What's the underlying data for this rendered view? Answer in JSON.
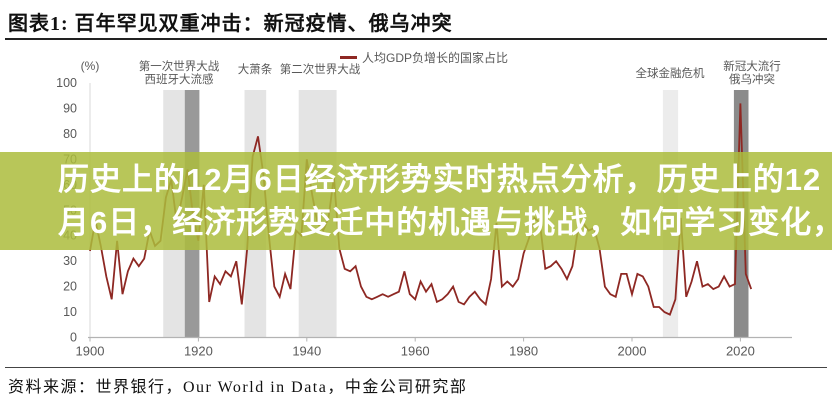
{
  "title": "图表1: 百年罕见双重冲击：新冠疫情、俄乌冲突",
  "source": "资料来源：世界银行，Our World in Data，中金公司研究部",
  "overlay": {
    "background": "#acbc3c",
    "opacity": 0.85,
    "text_color": "#ffffff",
    "line1": "历史上的12月6日经济形势实时热点分析，历史上的12",
    "line2": "月6日，经济形势变迁中的机遇与挑战，如何学习变化，"
  },
  "legend": {
    "marker_color": "#8e2823",
    "label": "人均GDP负增长的国家占比"
  },
  "chart_data": {
    "type": "line",
    "title": "图表1: 百年罕见双重冲击：新冠疫情、俄乌冲突",
    "series_name": "人均GDP负增长的国家占比",
    "unit_label": "(%)",
    "ylabel": "(%)",
    "xlabel": "",
    "ylim": [
      0,
      100
    ],
    "xlim": [
      1900,
      2023
    ],
    "grid": false,
    "legend_position": "top-center",
    "yticks": [
      0,
      10,
      20,
      30,
      40,
      50,
      60,
      70,
      80,
      90,
      100
    ],
    "xticks": [
      1900,
      1920,
      1940,
      1960,
      1980,
      2000,
      2020
    ],
    "x_start": 1900,
    "x_step": 1,
    "values": [
      34,
      46,
      36,
      24,
      15,
      38,
      17,
      26,
      31,
      28,
      31,
      42,
      36,
      38,
      55,
      62,
      45,
      55,
      66,
      48,
      38,
      60,
      14,
      24,
      21,
      26,
      24,
      30,
      13,
      35,
      71,
      79,
      64,
      40,
      20,
      16,
      25,
      19,
      42,
      40,
      70,
      56,
      45,
      42,
      47,
      63,
      35,
      27,
      26,
      28,
      20,
      16,
      15,
      16,
      17,
      16,
      17,
      18,
      26,
      17,
      15,
      22,
      18,
      21,
      14,
      15,
      17,
      20,
      14,
      13,
      16,
      18,
      15,
      13,
      23,
      45,
      20,
      22,
      20,
      23,
      33,
      39,
      47,
      45,
      27,
      28,
      30,
      27,
      23,
      28,
      42,
      45,
      42,
      43,
      35,
      20,
      17,
      16,
      25,
      25,
      17,
      25,
      24,
      20,
      12,
      12,
      10,
      9,
      15,
      47,
      16,
      22,
      30,
      20,
      21,
      19,
      20,
      24,
      20,
      21,
      92,
      25,
      19
    ],
    "line_color": "#8e2823",
    "axis_color": "#b3b3b3",
    "tick_label_color": "#595959",
    "event_bands": [
      {
        "name": "wwi",
        "from": 1913.5,
        "to": 1917.5,
        "color": "#e4e4e4"
      },
      {
        "name": "spanish-flu",
        "from": 1917.5,
        "to": 1920.2,
        "color": "#999999"
      },
      {
        "name": "great-depression",
        "from": 1928.5,
        "to": 1932.5,
        "color": "#e4e4e4"
      },
      {
        "name": "wwii",
        "from": 1938.5,
        "to": 1945.5,
        "color": "#e4e4e4"
      },
      {
        "name": "gfc",
        "from": 2005.7,
        "to": 2008.5,
        "color": "#ececec"
      },
      {
        "name": "covid-ukraine",
        "from": 2018.8,
        "to": 2021.5,
        "color": "#8b8b8b"
      }
    ],
    "annotations": [
      {
        "name": "annotation-wwi-flu",
        "text": "第一次世界大战\n西班牙大流感",
        "year": 1916.5,
        "top": 21
      },
      {
        "name": "annotation-great-depression",
        "text": "大萧条",
        "year": 1930.5,
        "top": 24
      },
      {
        "name": "annotation-wwii",
        "text": "第二次世界大战",
        "year": 1942.5,
        "top": 24
      },
      {
        "name": "annotation-gfc",
        "text": "全球金融危机",
        "year": 2007,
        "top": 28
      },
      {
        "name": "annotation-covid-ukraine",
        "text": "新冠大流行\n俄乌冲突",
        "year": 2022.2,
        "top": 21
      }
    ]
  }
}
